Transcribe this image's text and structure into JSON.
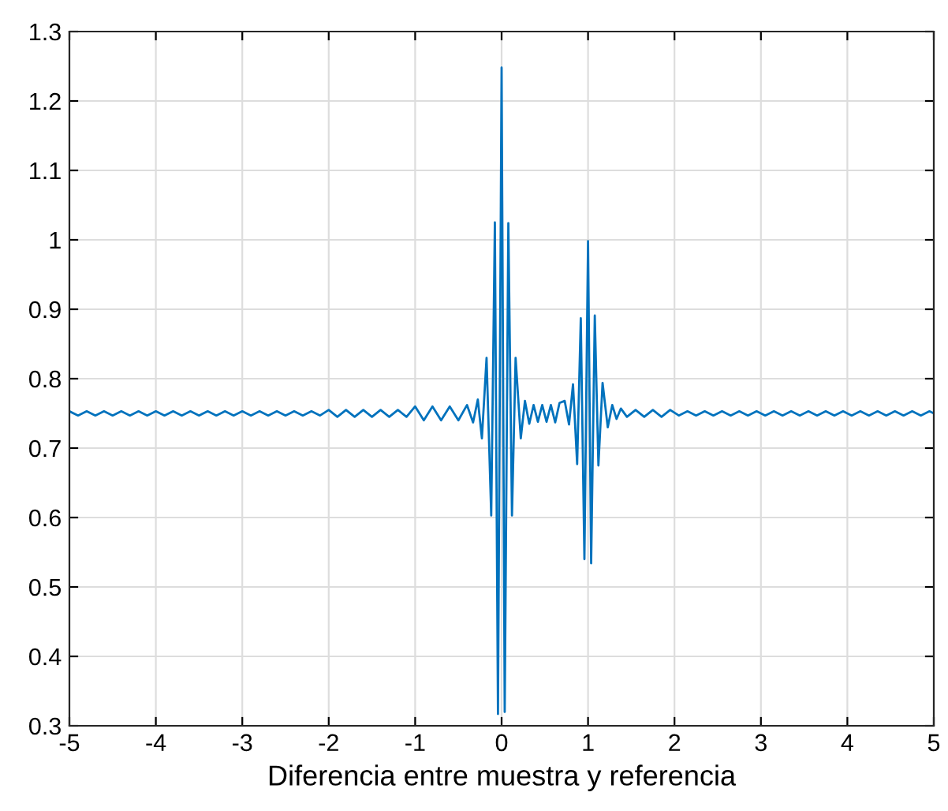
{
  "chart_data": {
    "type": "line",
    "xlabel": "Diferencia entre muestra y referencia",
    "xlim": [
      -5,
      5
    ],
    "xticks": [
      -5,
      -4,
      -3,
      -2,
      -1,
      0,
      1,
      2,
      3,
      4,
      5
    ],
    "ylim": [
      0.3,
      1.3
    ],
    "yticks": [
      0.3,
      0.4,
      0.5,
      0.6,
      0.7,
      0.8,
      0.9,
      {
        "value": 1.0,
        "label": "1"
      },
      1.1,
      1.2,
      1.3
    ],
    "grid": true,
    "marker": "none",
    "line_style": "solid",
    "series": [
      {
        "color": "#0072bd",
        "x": [
          -5.0,
          -4.9,
          -4.8,
          -4.7,
          -4.6,
          -4.5,
          -4.4,
          -4.3,
          -4.2,
          -4.1,
          -4.0,
          -3.9,
          -3.8,
          -3.7,
          -3.6,
          -3.5,
          -3.4,
          -3.3,
          -3.2,
          -3.1,
          -3.0,
          -2.9,
          -2.8,
          -2.7,
          -2.6,
          -2.5,
          -2.4,
          -2.3,
          -2.2,
          -2.1,
          -2.0,
          -1.9,
          -1.8,
          -1.7,
          -1.6,
          -1.5,
          -1.4,
          -1.3,
          -1.2,
          -1.1,
          -1.0,
          -0.9,
          -0.8,
          -0.7,
          -0.6,
          -0.5,
          -0.4,
          -0.33,
          -0.275,
          -0.228,
          -0.174,
          -0.12,
          -0.078,
          -0.042,
          0.0,
          0.036,
          0.078,
          0.12,
          0.162,
          0.222,
          0.27,
          0.32,
          0.37,
          0.42,
          0.47,
          0.52,
          0.57,
          0.62,
          0.67,
          0.73,
          0.78,
          0.826,
          0.874,
          0.916,
          0.958,
          1.0,
          1.036,
          1.078,
          1.12,
          1.168,
          1.228,
          1.28,
          1.33,
          1.38,
          1.45,
          1.55,
          1.65,
          1.75,
          1.85,
          1.95,
          2.05,
          2.15,
          2.25,
          2.35,
          2.45,
          2.55,
          2.65,
          2.75,
          2.85,
          2.95,
          3.05,
          3.15,
          3.25,
          3.35,
          3.45,
          3.55,
          3.65,
          3.75,
          3.85,
          3.95,
          4.05,
          4.15,
          4.25,
          4.35,
          4.45,
          4.55,
          4.65,
          4.75,
          4.85,
          4.95,
          5.0
        ],
        "values": [
          0.753,
          0.747,
          0.753,
          0.747,
          0.753,
          0.747,
          0.753,
          0.747,
          0.753,
          0.747,
          0.753,
          0.747,
          0.753,
          0.747,
          0.753,
          0.747,
          0.753,
          0.747,
          0.753,
          0.747,
          0.753,
          0.747,
          0.753,
          0.747,
          0.753,
          0.747,
          0.753,
          0.747,
          0.753,
          0.747,
          0.755,
          0.745,
          0.755,
          0.745,
          0.755,
          0.745,
          0.755,
          0.745,
          0.755,
          0.745,
          0.76,
          0.74,
          0.76,
          0.74,
          0.76,
          0.74,
          0.762,
          0.737,
          0.77,
          0.714,
          0.83,
          0.603,
          1.025,
          0.317,
          1.248,
          0.32,
          1.024,
          0.603,
          0.83,
          0.714,
          0.768,
          0.735,
          0.762,
          0.738,
          0.762,
          0.738,
          0.762,
          0.737,
          0.765,
          0.768,
          0.734,
          0.792,
          0.677,
          0.887,
          0.54,
          0.998,
          0.534,
          0.891,
          0.675,
          0.794,
          0.73,
          0.762,
          0.742,
          0.757,
          0.745,
          0.755,
          0.745,
          0.755,
          0.745,
          0.755,
          0.747,
          0.753,
          0.747,
          0.753,
          0.747,
          0.753,
          0.747,
          0.753,
          0.747,
          0.753,
          0.747,
          0.753,
          0.747,
          0.753,
          0.747,
          0.753,
          0.747,
          0.753,
          0.747,
          0.753,
          0.747,
          0.753,
          0.747,
          0.753,
          0.747,
          0.753,
          0.747,
          0.753,
          0.747,
          0.753,
          0.75
        ]
      }
    ]
  }
}
